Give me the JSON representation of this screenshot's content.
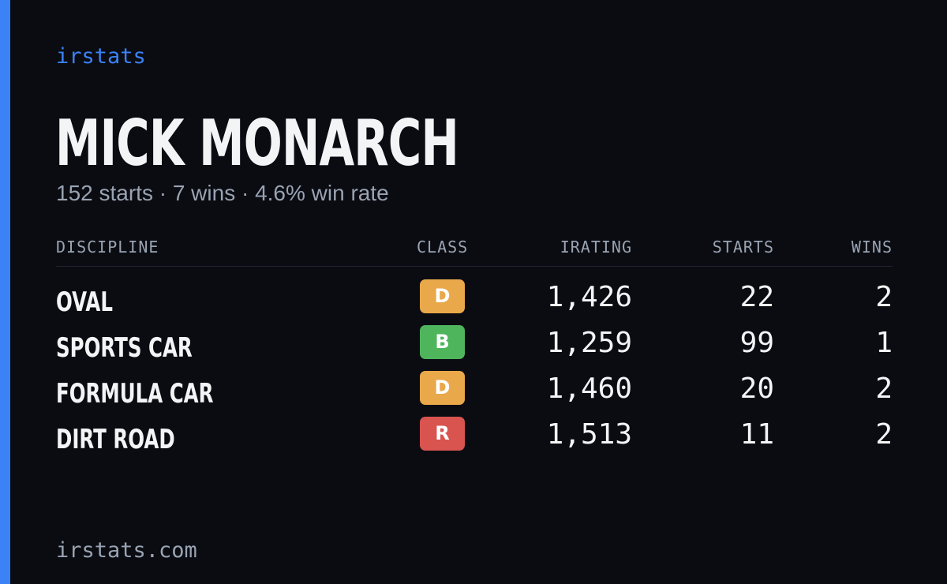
{
  "brand": "irstats",
  "player": {
    "name": "MICK MONARCH",
    "summary": "152 starts · 7 wins · 4.6% win rate"
  },
  "table": {
    "headers": {
      "discipline": "DISCIPLINE",
      "class": "CLASS",
      "irating": "IRATING",
      "starts": "STARTS",
      "wins": "WINS"
    },
    "rows": [
      {
        "discipline": "OVAL",
        "class": "D",
        "class_color": "#e9a84a",
        "irating": "1,426",
        "starts": "22",
        "wins": "2"
      },
      {
        "discipline": "SPORTS CAR",
        "class": "B",
        "class_color": "#4fb55c",
        "irating": "1,259",
        "starts": "99",
        "wins": "1"
      },
      {
        "discipline": "FORMULA CAR",
        "class": "D",
        "class_color": "#e9a84a",
        "irating": "1,460",
        "starts": "20",
        "wins": "2"
      },
      {
        "discipline": "DIRT ROAD",
        "class": "R",
        "class_color": "#d9534f",
        "irating": "1,513",
        "starts": "11",
        "wins": "2"
      }
    ]
  },
  "footer": "irstats.com",
  "colors": {
    "accent": "#3b82f6",
    "background": "#0a0c12",
    "muted_text": "#9aa3b2"
  }
}
